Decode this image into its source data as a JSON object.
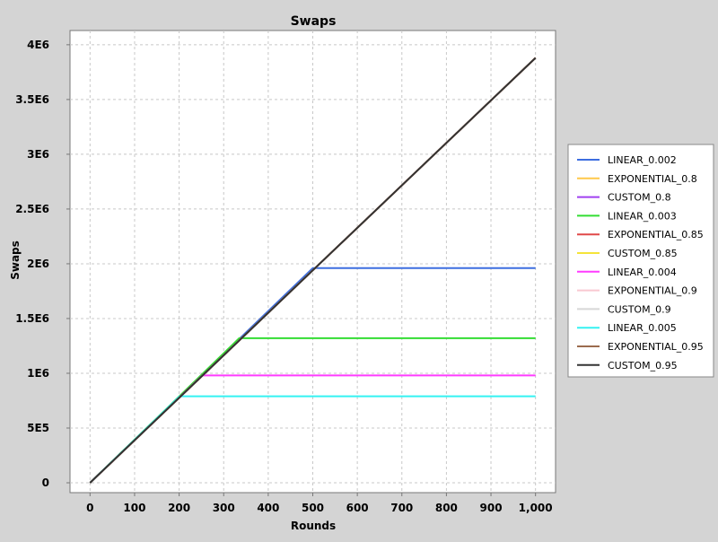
{
  "chart_data": {
    "type": "line",
    "title": "Swaps",
    "xlabel": "Rounds",
    "ylabel": "Swaps",
    "xlim": [
      -45,
      1045
    ],
    "ylim": [
      -90000,
      4130000
    ],
    "x_ticks": [
      0,
      100,
      200,
      300,
      400,
      500,
      600,
      700,
      800,
      900,
      1000
    ],
    "x_tick_labels": [
      "0",
      "100",
      "200",
      "300",
      "400",
      "500",
      "600",
      "700",
      "800",
      "900",
      "1,000"
    ],
    "y_ticks": [
      0,
      500000,
      1000000,
      1500000,
      2000000,
      2500000,
      3000000,
      3500000,
      4000000
    ],
    "y_tick_labels": [
      "0",
      "5E5",
      "1E6",
      "1.5E6",
      "2E6",
      "2.5E6",
      "3E6",
      "3.5E6",
      "4E6"
    ],
    "grid": true,
    "legend_position": "right",
    "series": [
      {
        "name": "LINEAR_0.002",
        "color": "#3d6ee0",
        "x": [
          0,
          500,
          1000
        ],
        "y": [
          0,
          1960000,
          1960000
        ]
      },
      {
        "name": "EXPONENTIAL_0.8",
        "color": "#ffc84a",
        "x": [
          0,
          1000
        ],
        "y": [
          0,
          3880000
        ]
      },
      {
        "name": "CUSTOM_0.8",
        "color": "#a040f0",
        "x": [
          0,
          1000
        ],
        "y": [
          0,
          3880000
        ]
      },
      {
        "name": "LINEAR_0.003",
        "color": "#33dd33",
        "x": [
          0,
          335,
          1000
        ],
        "y": [
          0,
          1320000,
          1320000
        ]
      },
      {
        "name": "EXPONENTIAL_0.85",
        "color": "#e04848",
        "x": [
          0,
          1000
        ],
        "y": [
          0,
          3880000
        ]
      },
      {
        "name": "CUSTOM_0.85",
        "color": "#f5e43a",
        "x": [
          0,
          1000
        ],
        "y": [
          0,
          3880000
        ]
      },
      {
        "name": "LINEAR_0.004",
        "color": "#ff3cff",
        "x": [
          0,
          252,
          1000
        ],
        "y": [
          0,
          980000,
          980000
        ]
      },
      {
        "name": "EXPONENTIAL_0.9",
        "color": "#f9c8d0",
        "x": [
          0,
          1000
        ],
        "y": [
          0,
          3880000
        ]
      },
      {
        "name": "CUSTOM_0.9",
        "color": "#d7d7d7",
        "x": [
          0,
          1000
        ],
        "y": [
          0,
          3880000
        ]
      },
      {
        "name": "LINEAR_0.005",
        "color": "#35f2f2",
        "x": [
          0,
          201,
          1000
        ],
        "y": [
          0,
          790000,
          790000
        ]
      },
      {
        "name": "EXPONENTIAL_0.95",
        "color": "#9b6c4e",
        "x": [
          0,
          1000
        ],
        "y": [
          0,
          3880000
        ]
      },
      {
        "name": "CUSTOM_0.95",
        "color": "#333333",
        "x": [
          0,
          1000
        ],
        "y": [
          0,
          3880000
        ]
      }
    ]
  }
}
